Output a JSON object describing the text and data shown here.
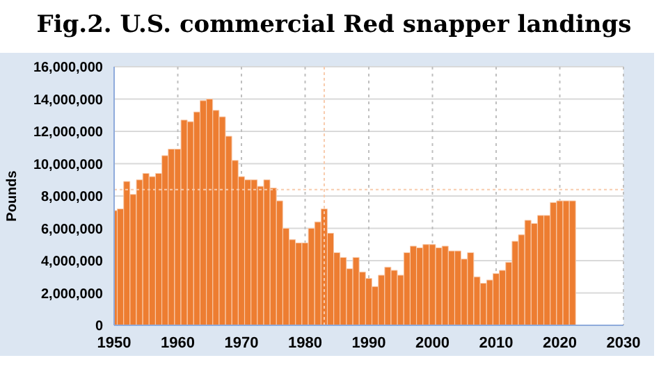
{
  "chart_data": {
    "type": "bar",
    "title": "Fig.2. U.S. commercial Red snapper landings",
    "ylabel": "Pounds",
    "color": "#ed7d31",
    "x": [
      1950,
      1951,
      1952,
      1953,
      1954,
      1955,
      1956,
      1957,
      1958,
      1959,
      1960,
      1961,
      1962,
      1963,
      1964,
      1965,
      1966,
      1967,
      1968,
      1969,
      1970,
      1971,
      1972,
      1973,
      1974,
      1975,
      1976,
      1977,
      1978,
      1979,
      1980,
      1981,
      1982,
      1983,
      1984,
      1985,
      1986,
      1987,
      1988,
      1989,
      1990,
      1991,
      1992,
      1993,
      1994,
      1995,
      1996,
      1997,
      1998,
      1999,
      2000,
      2001,
      2002,
      2003,
      2004,
      2005,
      2006,
      2007,
      2008,
      2009,
      2010,
      2011,
      2012,
      2013,
      2014,
      2015,
      2016,
      2017,
      2018,
      2019,
      2020,
      2021,
      2022
    ],
    "values": [
      7100000,
      7200000,
      8900000,
      8100000,
      9000000,
      9400000,
      9200000,
      9400000,
      10500000,
      10900000,
      10900000,
      12700000,
      12600000,
      13200000,
      13900000,
      14000000,
      13300000,
      12900000,
      11700000,
      10200000,
      9200000,
      9000000,
      9000000,
      8600000,
      9000000,
      8500000,
      7700000,
      6000000,
      5300000,
      5100000,
      5100000,
      6000000,
      6400000,
      7200000,
      5700000,
      4500000,
      4200000,
      3500000,
      4200000,
      3300000,
      2900000,
      2400000,
      3100000,
      3600000,
      3400000,
      3100000,
      4500000,
      4900000,
      4800000,
      5000000,
      5000000,
      4800000,
      4900000,
      4600000,
      4600000,
      4100000,
      4500000,
      3000000,
      2600000,
      2800000,
      3200000,
      3400000,
      3900000,
      5200000,
      5600000,
      6500000,
      6300000,
      6800000,
      6800000,
      7600000,
      7700000,
      7700000,
      7700000
    ],
    "xlim": [
      1950,
      2030
    ],
    "xticks": [
      1950,
      1960,
      1970,
      1980,
      1990,
      2000,
      2010,
      2020,
      2030
    ],
    "ylim": [
      0,
      16000000
    ],
    "yticks": [
      0,
      {
        "value": 2000000,
        "label": "2,000,000"
      },
      {
        "value": 4000000,
        "label": "4,000,000"
      },
      {
        "value": 6000000,
        "label": "6,000,000"
      },
      {
        "value": 8000000,
        "label": "8,000,000"
      },
      {
        "value": 10000000,
        "label": "10,000,000"
      },
      {
        "value": 12000000,
        "label": "12,000,000"
      },
      {
        "value": 14000000,
        "label": "14,000,000"
      },
      {
        "value": 16000000,
        "label": "16,000,000"
      }
    ],
    "grid": true,
    "ref_lines": [
      {
        "axis": "y",
        "value": 8400000,
        "color": "#f8cbad",
        "line_style": "dotted"
      },
      {
        "axis": "x",
        "value": 1983,
        "color": "#f8cbad",
        "line_style": "dotted"
      }
    ]
  }
}
